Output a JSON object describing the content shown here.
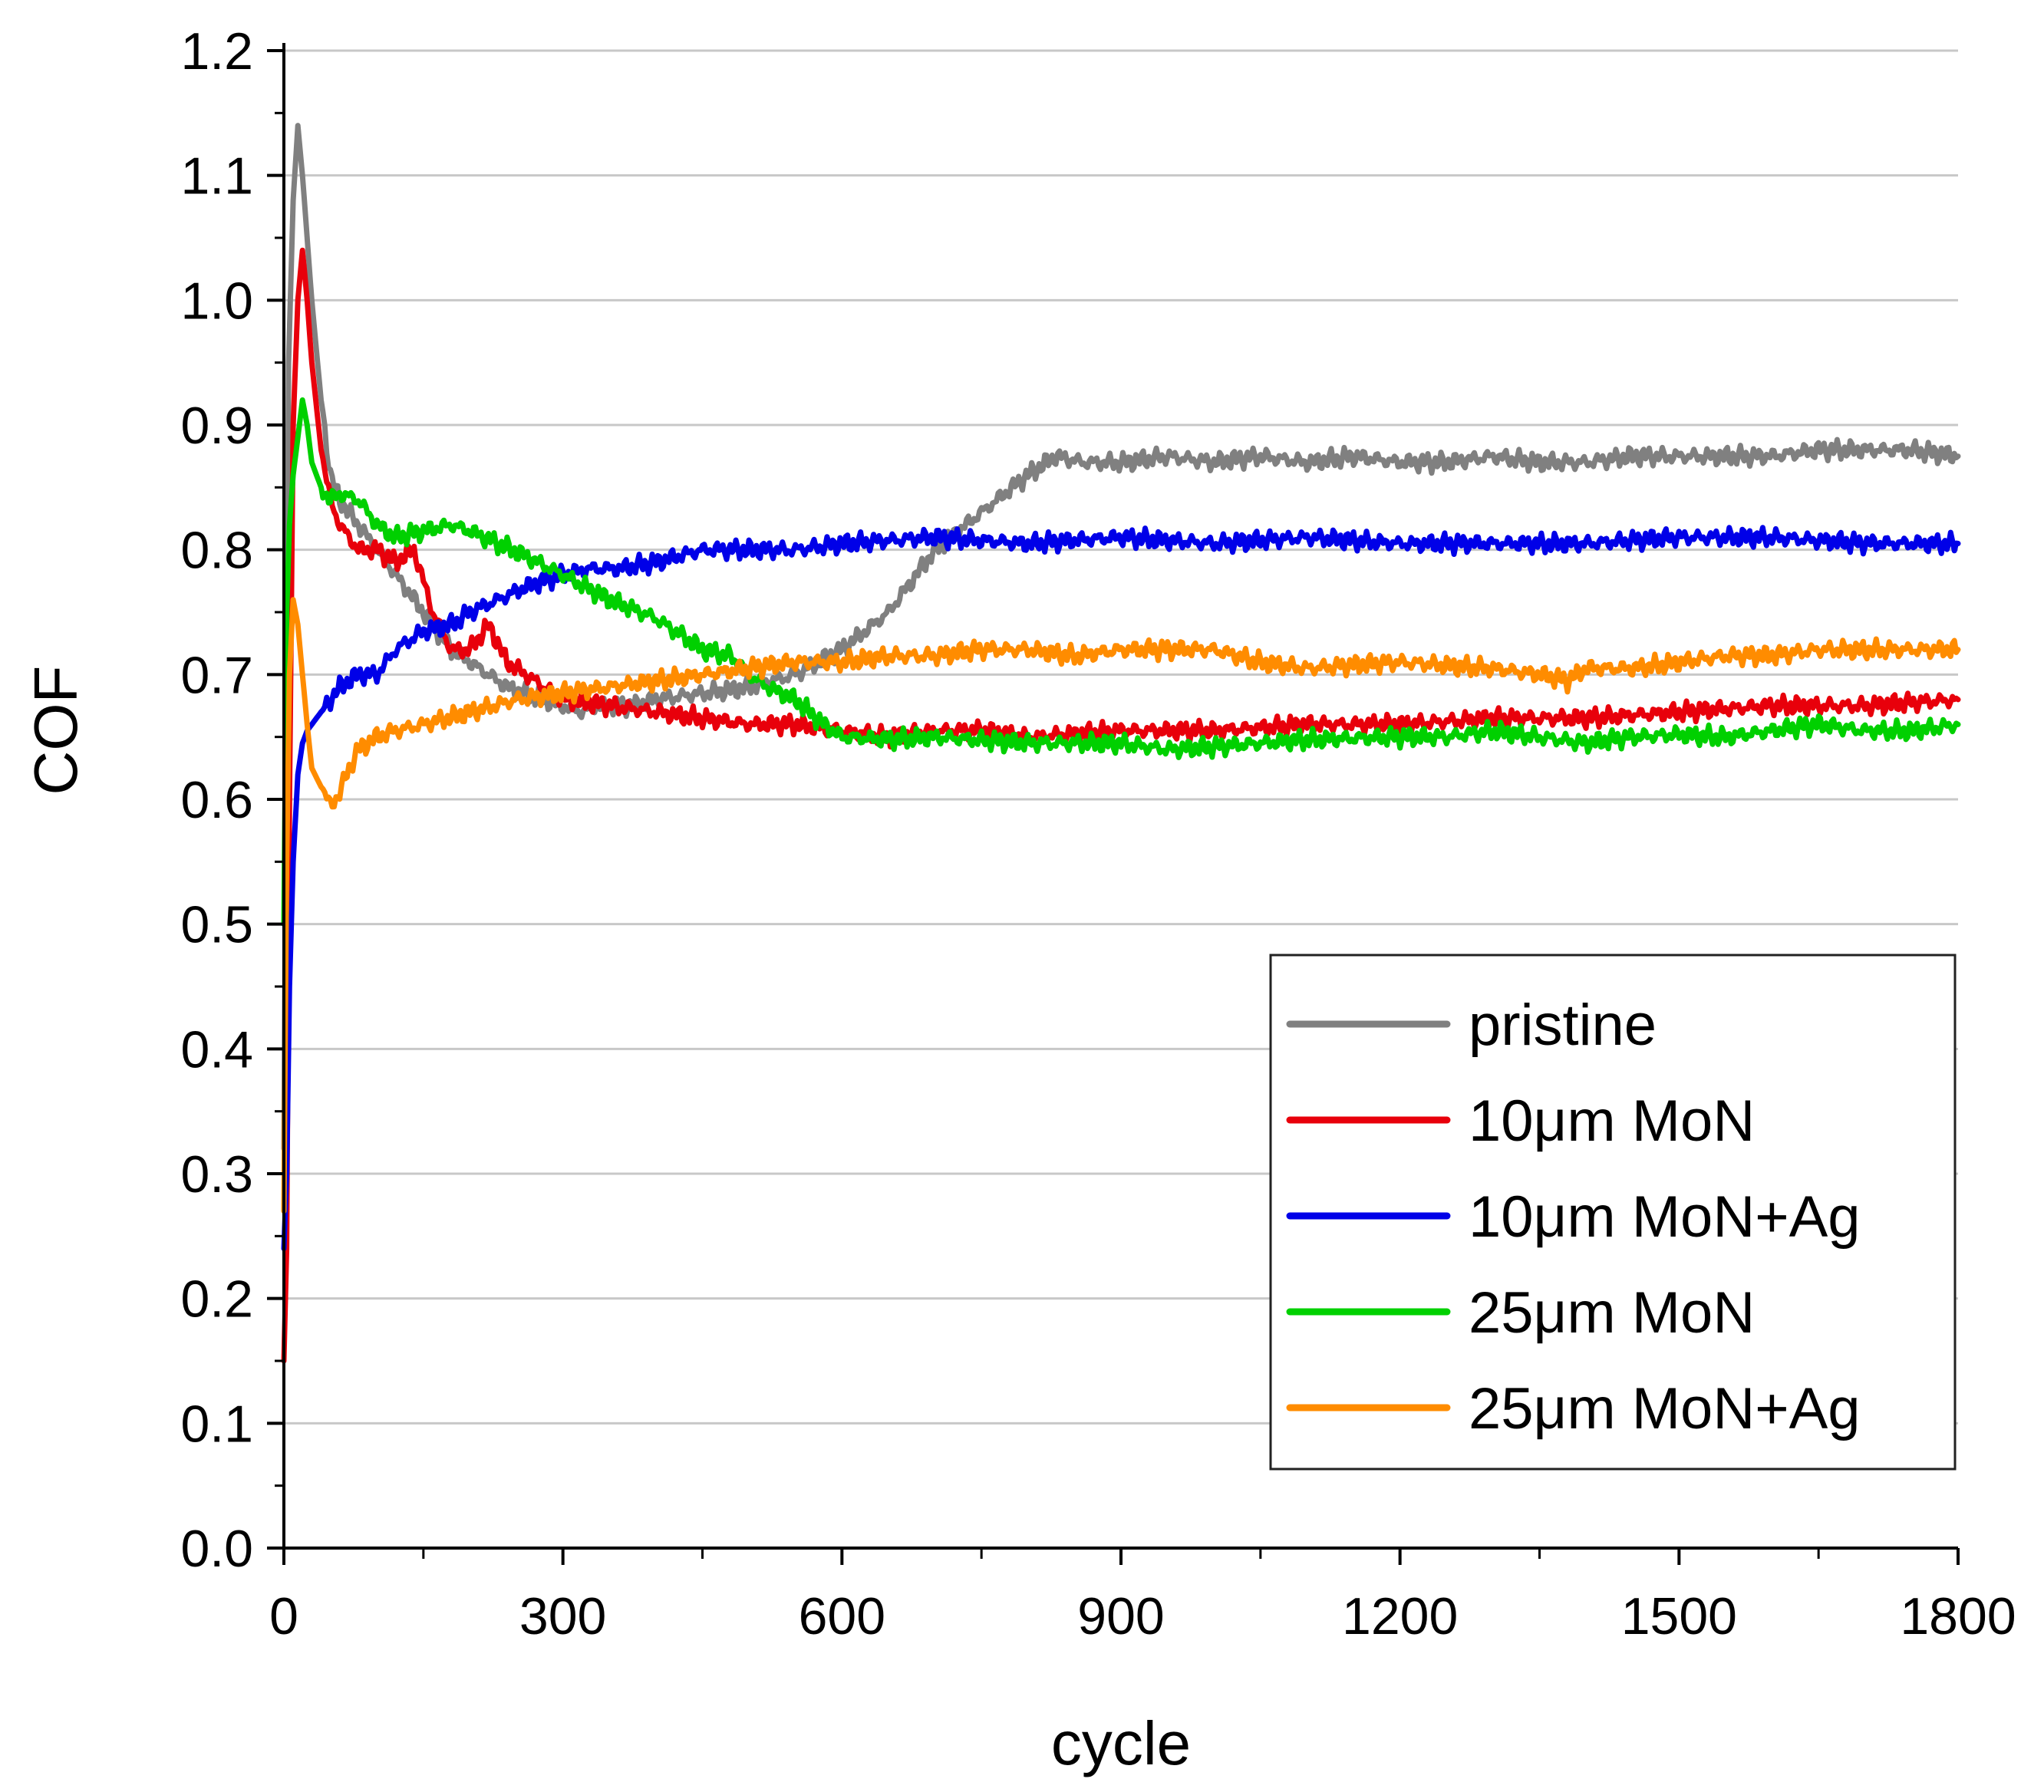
{
  "chart_data": {
    "type": "line",
    "title": "",
    "xlabel": "cycle",
    "ylabel": "COF",
    "xlim": [
      0,
      1800
    ],
    "ylim": [
      0.0,
      1.2
    ],
    "xticks": [
      "0",
      "300",
      "600",
      "900",
      "1200",
      "1500",
      "1800"
    ],
    "yticks": [
      "0.0",
      "0.1",
      "0.2",
      "0.3",
      "0.4",
      "0.5",
      "0.6",
      "0.7",
      "0.8",
      "0.9",
      "1.0",
      "1.1",
      "1.2"
    ],
    "grid": "horizontal",
    "legend_position": "bottom-right",
    "series": [
      {
        "name": "pristine",
        "color": "#808080",
        "x": [
          0,
          5,
          10,
          15,
          20,
          25,
          30,
          40,
          50,
          60,
          80,
          100,
          120,
          150,
          180,
          200,
          240,
          280,
          300,
          320,
          340,
          360,
          380,
          400,
          450,
          500,
          550,
          600,
          650,
          700,
          750,
          800,
          830,
          860,
          900,
          950,
          1000,
          1050,
          1100,
          1150,
          1200,
          1250,
          1300,
          1350,
          1400,
          1450,
          1500,
          1550,
          1600,
          1650,
          1700,
          1750,
          1800
        ],
        "y": [
          0.32,
          0.95,
          1.08,
          1.14,
          1.1,
          1.05,
          1.0,
          0.92,
          0.86,
          0.84,
          0.82,
          0.8,
          0.78,
          0.75,
          0.72,
          0.71,
          0.69,
          0.68,
          0.675,
          0.67,
          0.675,
          0.675,
          0.675,
          0.68,
          0.685,
          0.69,
          0.7,
          0.72,
          0.75,
          0.8,
          0.83,
          0.86,
          0.875,
          0.87,
          0.87,
          0.875,
          0.87,
          0.875,
          0.87,
          0.875,
          0.87,
          0.87,
          0.875,
          0.87,
          0.87,
          0.875,
          0.875,
          0.875,
          0.875,
          0.88,
          0.88,
          0.88,
          0.875
        ]
      },
      {
        "name": "10μm MoN",
        "color": "#e8000b",
        "x": [
          0,
          3,
          6,
          10,
          15,
          20,
          25,
          30,
          40,
          50,
          60,
          80,
          100,
          120,
          140,
          160,
          180,
          200,
          220,
          240,
          260,
          280,
          300,
          350,
          400,
          450,
          500,
          550,
          600,
          650,
          700,
          750,
          800,
          900,
          1000,
          1100,
          1200,
          1300,
          1400,
          1500,
          1600,
          1700,
          1800
        ],
        "y": [
          0.15,
          0.24,
          0.6,
          0.9,
          1.0,
          1.04,
          1.0,
          0.95,
          0.88,
          0.84,
          0.82,
          0.8,
          0.8,
          0.79,
          0.8,
          0.75,
          0.72,
          0.72,
          0.74,
          0.71,
          0.7,
          0.69,
          0.68,
          0.675,
          0.67,
          0.665,
          0.66,
          0.66,
          0.655,
          0.65,
          0.655,
          0.655,
          0.65,
          0.655,
          0.655,
          0.66,
          0.66,
          0.665,
          0.665,
          0.67,
          0.675,
          0.675,
          0.68
        ]
      },
      {
        "name": "10μm MoN+Ag",
        "color": "#0000e8",
        "x": [
          0,
          3,
          6,
          10,
          15,
          20,
          25,
          30,
          40,
          50,
          60,
          80,
          100,
          120,
          150,
          180,
          200,
          230,
          260,
          280,
          300,
          330,
          360,
          400,
          450,
          500,
          550,
          600,
          700,
          800,
          900,
          1000,
          1100,
          1200,
          1300,
          1400,
          1500,
          1600,
          1700,
          1750,
          1800
        ],
        "y": [
          0.24,
          0.3,
          0.45,
          0.55,
          0.62,
          0.645,
          0.655,
          0.66,
          0.67,
          0.68,
          0.69,
          0.7,
          0.7,
          0.72,
          0.735,
          0.74,
          0.75,
          0.76,
          0.77,
          0.775,
          0.78,
          0.785,
          0.785,
          0.79,
          0.8,
          0.8,
          0.8,
          0.805,
          0.81,
          0.805,
          0.81,
          0.805,
          0.81,
          0.805,
          0.805,
          0.805,
          0.81,
          0.81,
          0.805,
          0.805,
          0.805
        ]
      },
      {
        "name": "25μm MoN",
        "color": "#00d000",
        "x": [
          0,
          3,
          6,
          10,
          15,
          20,
          25,
          30,
          40,
          50,
          60,
          80,
          100,
          120,
          150,
          180,
          200,
          230,
          260,
          300,
          350,
          400,
          450,
          480,
          500,
          520,
          550,
          580,
          600,
          650,
          700,
          800,
          900,
          950,
          1000,
          1100,
          1200,
          1250,
          1300,
          1350,
          1400,
          1450,
          1500,
          1550,
          1600,
          1650,
          1700,
          1750,
          1800
        ],
        "y": [
          0.5,
          0.75,
          0.82,
          0.86,
          0.89,
          0.92,
          0.9,
          0.87,
          0.85,
          0.84,
          0.845,
          0.84,
          0.82,
          0.81,
          0.815,
          0.82,
          0.815,
          0.805,
          0.795,
          0.78,
          0.76,
          0.745,
          0.72,
          0.715,
          0.7,
          0.69,
          0.68,
          0.66,
          0.65,
          0.648,
          0.65,
          0.645,
          0.645,
          0.64,
          0.642,
          0.648,
          0.65,
          0.65,
          0.655,
          0.65,
          0.645,
          0.65,
          0.652,
          0.65,
          0.655,
          0.66,
          0.655,
          0.655,
          0.66
        ]
      },
      {
        "name": "25μm MoN+Ag",
        "color": "#ff8c00",
        "x": [
          0,
          3,
          6,
          10,
          15,
          20,
          25,
          30,
          40,
          50,
          60,
          70,
          80,
          100,
          120,
          150,
          200,
          250,
          300,
          350,
          400,
          450,
          500,
          550,
          600,
          650,
          700,
          750,
          800,
          850,
          900,
          1000,
          1050,
          1100,
          1200,
          1300,
          1350,
          1380,
          1400,
          1450,
          1500,
          1550,
          1600,
          1650,
          1700,
          1750,
          1800
        ],
        "y": [
          0.27,
          0.55,
          0.7,
          0.76,
          0.74,
          0.7,
          0.66,
          0.625,
          0.61,
          0.595,
          0.605,
          0.625,
          0.64,
          0.65,
          0.655,
          0.66,
          0.67,
          0.68,
          0.685,
          0.69,
          0.695,
          0.7,
          0.705,
          0.71,
          0.71,
          0.715,
          0.715,
          0.72,
          0.72,
          0.715,
          0.72,
          0.72,
          0.71,
          0.705,
          0.71,
          0.705,
          0.7,
          0.695,
          0.705,
          0.705,
          0.71,
          0.715,
          0.715,
          0.72,
          0.72,
          0.72,
          0.72
        ]
      }
    ]
  }
}
